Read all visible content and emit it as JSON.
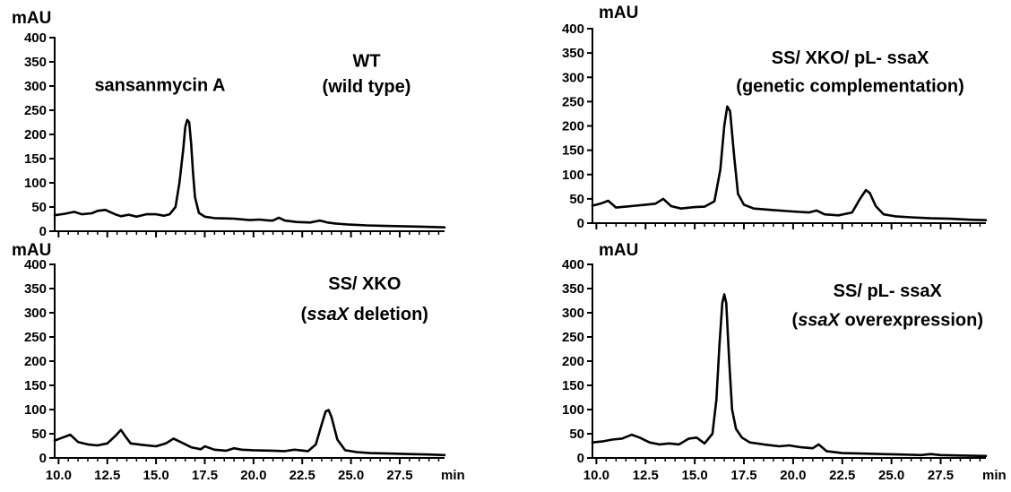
{
  "chart_data": [
    {
      "type": "line",
      "ylabel": "mAU",
      "ylim": [
        0,
        400
      ],
      "yticks": [
        0,
        50,
        100,
        150,
        200,
        250,
        300,
        350,
        400
      ],
      "xlim": [
        9.8,
        29.8
      ],
      "xticks": [],
      "xlabel": "",
      "annotations": [
        {
          "text": "sansanmycin A",
          "x": 15.2,
          "y": 290
        },
        {
          "text": "WT",
          "x": 25.8,
          "y": 340
        },
        {
          "text": "(wild type)",
          "x": 25.8,
          "y": 287
        }
      ],
      "series": [
        {
          "x": [
            9.8,
            10.3,
            10.8,
            11.2,
            11.7,
            12.0,
            12.4,
            12.9,
            13.2,
            13.6,
            14.0,
            14.5,
            15.0,
            15.4,
            15.7,
            16.0,
            16.2,
            16.4,
            16.5,
            16.6,
            16.7,
            16.8,
            16.9,
            17.0,
            17.2,
            17.5,
            18.0,
            19.0,
            19.8,
            20.3,
            20.8,
            21.0,
            21.3,
            21.6,
            22.2,
            22.9,
            23.4,
            23.8,
            24.2,
            24.8,
            25.8,
            26.8,
            27.8,
            28.8,
            29.8
          ],
          "y": [
            33,
            36,
            40,
            35,
            37,
            42,
            44,
            35,
            31,
            34,
            30,
            35,
            35,
            32,
            35,
            50,
            100,
            170,
            215,
            230,
            225,
            180,
            120,
            70,
            38,
            30,
            27,
            26,
            23,
            24,
            22,
            22,
            28,
            22,
            19,
            18,
            22,
            18,
            16,
            14,
            12,
            11,
            10,
            9,
            8
          ]
        }
      ]
    },
    {
      "type": "line",
      "ylabel": "mAU",
      "ylim": [
        0,
        400
      ],
      "yticks": [
        0,
        50,
        100,
        150,
        200,
        250,
        300,
        350,
        400
      ],
      "xlim": [
        9.8,
        29.8
      ],
      "xticks": [
        "10.0",
        "12.5",
        "15.0",
        "17.5",
        "20.0",
        "22.5",
        "25.0",
        "27.5"
      ],
      "xlabel": "min",
      "annotations": [
        {
          "text": "SS/ XKO",
          "x": 25.7,
          "y": 348
        },
        {
          "text": "(ssaX deletion)",
          "x": 25.7,
          "y": 285
        }
      ],
      "series": [
        {
          "x": [
            9.8,
            10.2,
            10.6,
            11.0,
            11.5,
            12.0,
            12.5,
            12.9,
            13.2,
            13.4,
            13.7,
            14.3,
            15.0,
            15.5,
            15.9,
            16.3,
            16.8,
            17.3,
            17.5,
            18.0,
            18.6,
            19.0,
            19.4,
            20.0,
            21.0,
            21.6,
            22.1,
            22.8,
            23.2,
            23.5,
            23.7,
            23.85,
            24.0,
            24.3,
            24.7,
            25.3,
            26.0,
            27.0,
            28.0,
            29.0,
            29.8
          ],
          "y": [
            36,
            42,
            48,
            33,
            28,
            26,
            30,
            45,
            58,
            46,
            30,
            27,
            24,
            30,
            40,
            32,
            22,
            18,
            24,
            17,
            15,
            20,
            17,
            16,
            15,
            14,
            17,
            14,
            28,
            70,
            96,
            99,
            85,
            38,
            16,
            12,
            10,
            9,
            8,
            7,
            6
          ]
        }
      ]
    },
    {
      "type": "line",
      "ylabel": "mAU",
      "ylim": [
        0,
        400
      ],
      "yticks": [
        0,
        50,
        100,
        150,
        200,
        250,
        300,
        350,
        400
      ],
      "xlim": [
        9.8,
        29.8
      ],
      "xticks": [],
      "xlabel": "",
      "annotations": [
        {
          "text": "SS/ XKO/ pL- ssaX",
          "x": 22.9,
          "y": 328
        },
        {
          "text": "(genetic complementation)",
          "x": 22.9,
          "y": 270
        }
      ],
      "series": [
        {
          "x": [
            9.8,
            10.2,
            10.6,
            11.0,
            11.5,
            12.0,
            12.5,
            13.0,
            13.4,
            13.8,
            14.3,
            15.0,
            15.5,
            16.0,
            16.3,
            16.5,
            16.65,
            16.8,
            17.0,
            17.2,
            17.5,
            18.0,
            19.0,
            20.0,
            20.8,
            21.2,
            21.6,
            22.3,
            23.0,
            23.4,
            23.7,
            23.9,
            24.2,
            24.6,
            25.2,
            26.0,
            27.0,
            28.0,
            29.0,
            29.8
          ],
          "y": [
            36,
            40,
            46,
            32,
            34,
            36,
            38,
            40,
            50,
            35,
            30,
            33,
            34,
            45,
            110,
            200,
            240,
            230,
            140,
            60,
            38,
            30,
            27,
            24,
            22,
            26,
            18,
            16,
            22,
            50,
            68,
            62,
            35,
            18,
            14,
            12,
            10,
            9,
            7,
            6
          ]
        }
      ]
    },
    {
      "type": "line",
      "ylabel": "mAU",
      "ylim": [
        0,
        400
      ],
      "yticks": [
        0,
        50,
        100,
        150,
        200,
        250,
        300,
        350,
        400
      ],
      "xlim": [
        9.8,
        29.8
      ],
      "xticks": [
        "10.0",
        "12.5",
        "15.0",
        "17.5",
        "20.0",
        "22.5",
        "25.0",
        "27.5"
      ],
      "xlabel": "min",
      "annotations": [
        {
          "text": "SS/ pL- ssaX",
          "x": 24.8,
          "y": 333
        },
        {
          "text": "(ssaX overexpression)",
          "x": 24.8,
          "y": 273
        }
      ],
      "series": [
        {
          "x": [
            9.8,
            10.3,
            10.8,
            11.3,
            11.8,
            12.2,
            12.7,
            13.2,
            13.7,
            14.2,
            14.7,
            15.1,
            15.5,
            15.9,
            16.1,
            16.25,
            16.4,
            16.5,
            16.6,
            16.75,
            16.9,
            17.1,
            17.4,
            17.8,
            18.5,
            19.3,
            19.8,
            20.4,
            21.0,
            21.3,
            21.7,
            22.5,
            23.5,
            24.5,
            25.5,
            26.5,
            27.0,
            27.5,
            28.5,
            29.8
          ],
          "y": [
            32,
            34,
            38,
            40,
            48,
            42,
            32,
            28,
            30,
            28,
            40,
            42,
            30,
            50,
            120,
            230,
            320,
            338,
            320,
            200,
            100,
            60,
            42,
            32,
            28,
            24,
            26,
            22,
            20,
            28,
            14,
            10,
            9,
            8,
            7,
            6,
            8,
            6,
            5,
            4
          ]
        }
      ]
    }
  ]
}
